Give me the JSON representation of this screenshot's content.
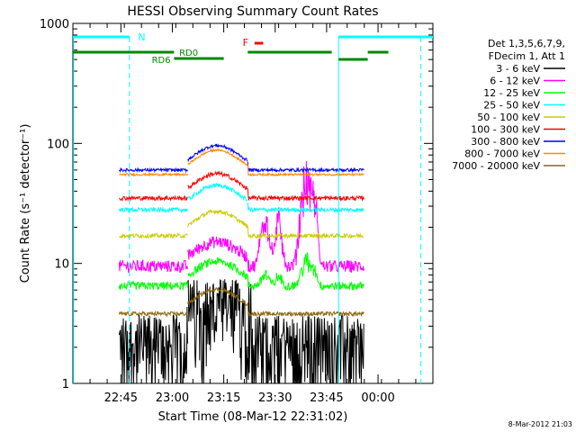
{
  "chart_data": {
    "type": "line",
    "title": "HESSI Observing Summary Count Rates",
    "xlabel": "Start Time (08-Mar-12 22:31:02)",
    "ylabel": "Count Rate (s⁻¹ detector⁻¹)",
    "yscale": "log",
    "ylim": [
      1,
      1000
    ],
    "xlim_minutes_after_22_31": [
      0,
      105
    ],
    "xticks": [
      {
        "label": "22:45",
        "minutes": 14
      },
      {
        "label": "23:00",
        "minutes": 29
      },
      {
        "label": "23:15",
        "minutes": 44
      },
      {
        "label": "23:30",
        "minutes": 59
      },
      {
        "label": "23:45",
        "minutes": 74
      },
      {
        "label": "00:00",
        "minutes": 89
      }
    ],
    "yticks": [
      {
        "label": "1",
        "value": 1
      },
      {
        "label": "10",
        "value": 10
      },
      {
        "label": "100",
        "value": 100
      },
      {
        "label": "1000",
        "value": 1000
      }
    ],
    "legend": {
      "placement": "right",
      "header": [
        "Det 1,3,5,6,7,9,",
        "FDecim 1, Att 1"
      ]
    },
    "series": [
      {
        "name": "3 - 6 keV",
        "color": "#000000",
        "base": 1.5,
        "noise": 0.45,
        "flare": 0.8
      },
      {
        "name": "6 - 12 keV",
        "color": "#ff00ff",
        "base": 9.5,
        "noise": 0.12,
        "flare": 0.7
      },
      {
        "name": "12 - 25 keV",
        "color": "#00ff00",
        "base": 6.5,
        "noise": 0.08,
        "flare": 0.1
      },
      {
        "name": "25 - 50 keV",
        "color": "#00ffff",
        "base": 28,
        "noise": 0.04,
        "flare": 0.0
      },
      {
        "name": "50 - 100 keV",
        "color": "#cccc00",
        "base": 17,
        "noise": 0.04,
        "flare": 0.0
      },
      {
        "name": "100 - 300 keV",
        "color": "#ff0000",
        "base": 35,
        "noise": 0.04,
        "flare": 0.0
      },
      {
        "name": "300 - 800 keV",
        "color": "#0000ff",
        "base": 60,
        "noise": 0.03,
        "flare": 0.0
      },
      {
        "name": "800 - 7000 keV",
        "color": "#ff8800",
        "base": 55,
        "noise": 0.02,
        "flare": 0.0
      },
      {
        "name": "7000 - 20000 keV",
        "color": "#8b6914",
        "base": 3.8,
        "noise": 0.04,
        "flare": 0.0
      }
    ],
    "annotations": {
      "night_label": "N",
      "saa_label": "",
      "flare_label": "F",
      "attenuator_labels": [
        "RD0",
        "RD6"
      ]
    },
    "timestamp": "8-Mar-2012 21:03"
  }
}
